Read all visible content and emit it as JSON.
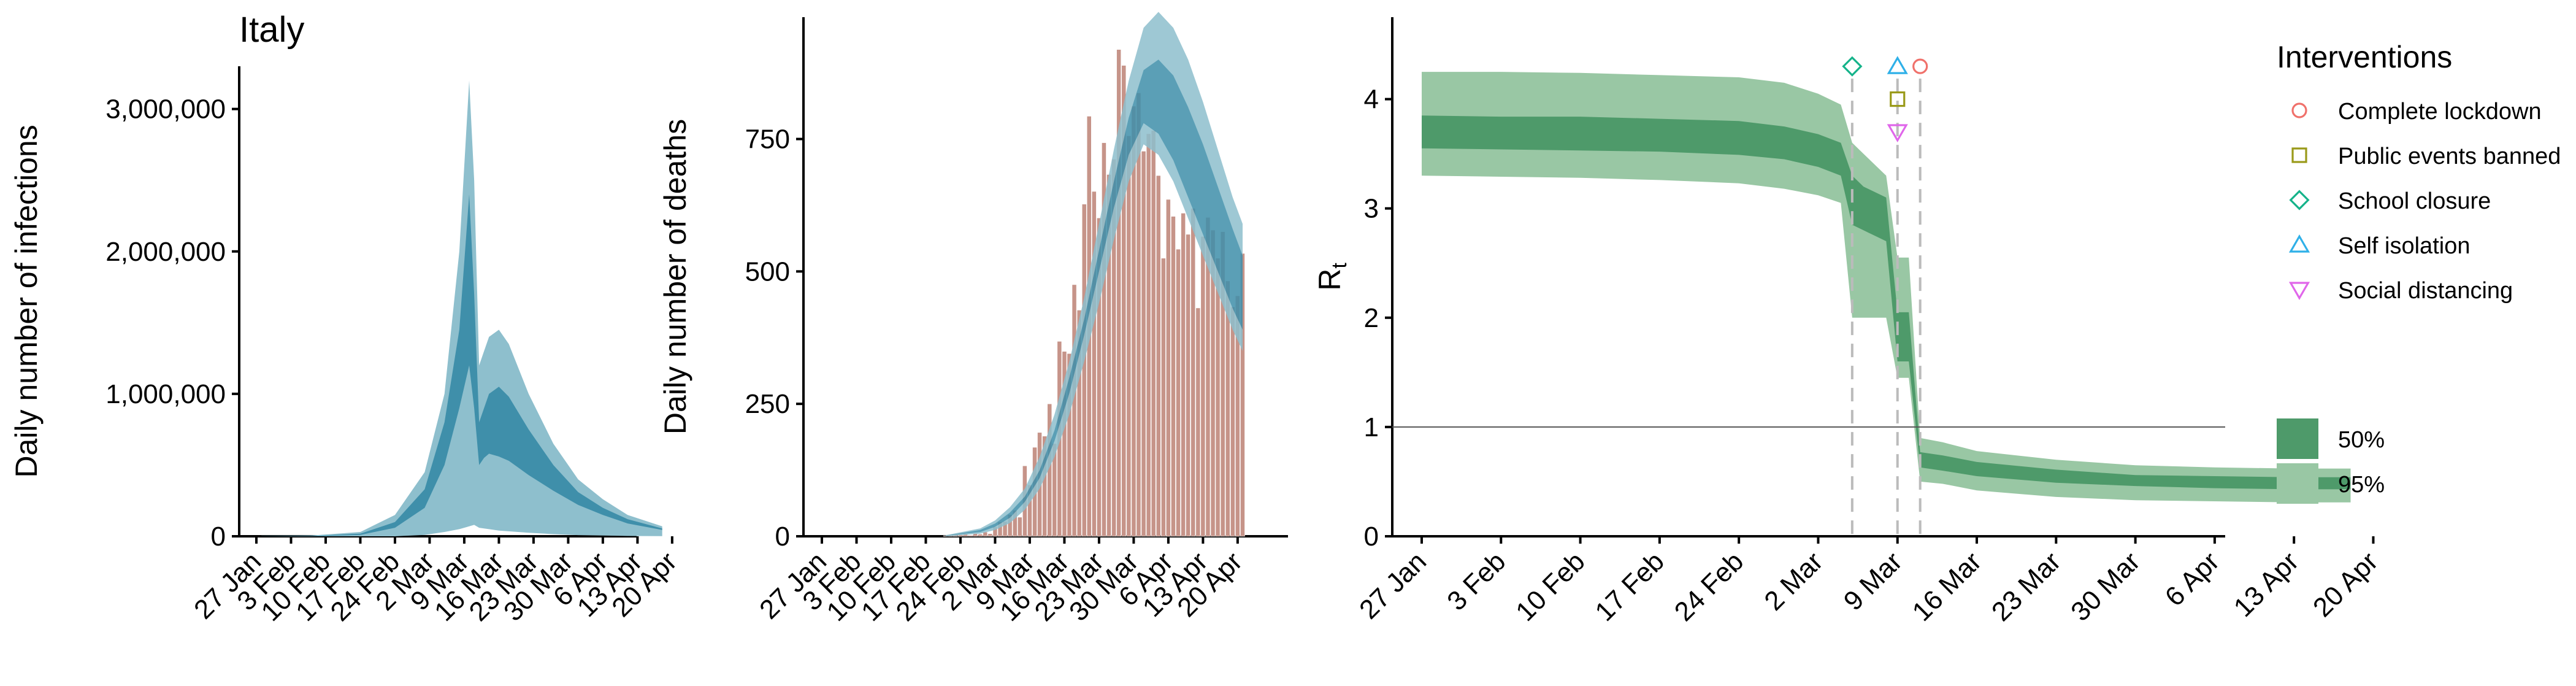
{
  "colors": {
    "blue_outer": "#8ebfcd",
    "blue_inner": "#3f8faa",
    "bar": "#c69489",
    "green_outer": "#99c7a4",
    "green_inner": "#4e9a6a",
    "lockdown": "#f0716b",
    "public_events": "#9a9a1a",
    "school": "#15b38a",
    "self_isolation": "#2fb0e8",
    "social_distancing": "#e066ea"
  },
  "chart_data": [
    {
      "type": "area",
      "title": "Italy",
      "xlabel": "",
      "ylabel": "Daily number of infections",
      "x_ticks": [
        "27 Jan",
        "3 Feb",
        "10 Feb",
        "17 Feb",
        "24 Feb",
        "2 Mar",
        "9 Mar",
        "16 Mar",
        "23 Mar",
        "30 Mar",
        "6 Apr",
        "13 Apr",
        "20 Apr"
      ],
      "y_ticks": [
        "0",
        "1,000,000",
        "2,000,000",
        "3,000,000"
      ],
      "ylim": [
        0,
        3300000
      ],
      "series": [
        {
          "band": "95%",
          "x": [
            "28 Jan",
            "7 Feb",
            "17 Feb",
            "24 Feb",
            "1 Mar",
            "5 Mar",
            "8 Mar",
            "10 Mar",
            "11 Mar",
            "12 Mar",
            "13 Mar",
            "14 Mar",
            "16 Mar",
            "18 Mar",
            "22 Mar",
            "27 Mar",
            "1 Apr",
            "6 Apr",
            "11 Apr",
            "18 Apr"
          ],
          "low": [
            0,
            0,
            0,
            0,
            10000,
            30000,
            50000,
            70000,
            80000,
            60000,
            55000,
            50000,
            40000,
            35000,
            25000,
            15000,
            8000,
            5000,
            2000,
            1000
          ],
          "high": [
            1000,
            5000,
            30000,
            150000,
            450000,
            1000000,
            2000000,
            3200000,
            2500000,
            1200000,
            1300000,
            1400000,
            1450000,
            1350000,
            1000000,
            650000,
            400000,
            260000,
            150000,
            70000
          ]
        },
        {
          "band": "50%",
          "x": [
            "28 Jan",
            "7 Feb",
            "17 Feb",
            "24 Feb",
            "1 Mar",
            "5 Mar",
            "8 Mar",
            "10 Mar",
            "11 Mar",
            "12 Mar",
            "13 Mar",
            "14 Mar",
            "16 Mar",
            "18 Mar",
            "22 Mar",
            "27 Mar",
            "1 Apr",
            "6 Apr",
            "11 Apr",
            "18 Apr"
          ],
          "low": [
            0,
            0,
            10000,
            60000,
            200000,
            500000,
            900000,
            1200000,
            900000,
            500000,
            550000,
            580000,
            560000,
            530000,
            430000,
            320000,
            220000,
            150000,
            90000,
            45000
          ],
          "high": [
            500,
            2000,
            18000,
            100000,
            330000,
            800000,
            1450000,
            2400000,
            1700000,
            800000,
            900000,
            1000000,
            1050000,
            980000,
            750000,
            500000,
            310000,
            200000,
            120000,
            55000
          ]
        }
      ]
    },
    {
      "type": "bar",
      "title": "",
      "xlabel": "",
      "ylabel": "Daily number of deaths",
      "x_ticks": [
        "27 Jan",
        "3 Feb",
        "10 Feb",
        "17 Feb",
        "24 Feb",
        "2 Mar",
        "9 Mar",
        "16 Mar",
        "23 Mar",
        "30 Mar",
        "6 Apr",
        "13 Apr",
        "20 Apr"
      ],
      "y_ticks": [
        "0",
        "250",
        "500",
        "750"
      ],
      "ylim": [
        0,
        980
      ],
      "categories": [
        "21 Feb",
        "22 Feb",
        "23 Feb",
        "24 Feb",
        "25 Feb",
        "26 Feb",
        "27 Feb",
        "28 Feb",
        "29 Feb",
        "1 Mar",
        "2 Mar",
        "3 Mar",
        "4 Mar",
        "5 Mar",
        "6 Mar",
        "7 Mar",
        "8 Mar",
        "9 Mar",
        "10 Mar",
        "11 Mar",
        "12 Mar",
        "13 Mar",
        "14 Mar",
        "15 Mar",
        "16 Mar",
        "17 Mar",
        "18 Mar",
        "19 Mar",
        "20 Mar",
        "21 Mar",
        "22 Mar",
        "23 Mar",
        "24 Mar",
        "25 Mar",
        "26 Mar",
        "27 Mar",
        "28 Mar",
        "29 Mar",
        "30 Mar",
        "31 Mar",
        "1 Apr",
        "2 Apr",
        "3 Apr",
        "4 Apr",
        "5 Apr",
        "6 Apr",
        "7 Apr",
        "8 Apr",
        "9 Apr",
        "10 Apr",
        "11 Apr",
        "12 Apr",
        "13 Apr",
        "14 Apr",
        "15 Apr",
        "16 Apr",
        "17 Apr",
        "18 Apr",
        "19 Apr",
        "20 Apr",
        "21 Apr"
      ],
      "values": [
        1,
        1,
        1,
        3,
        4,
        2,
        5,
        4,
        8,
        5,
        18,
        27,
        28,
        41,
        49,
        36,
        133,
        97,
        168,
        196,
        189,
        250,
        175,
        368,
        349,
        345,
        475,
        427,
        627,
        793,
        651,
        601,
        743,
        683,
        712,
        919,
        889,
        756,
        812,
        837,
        727,
        760,
        766,
        681,
        525,
        636,
        604,
        542,
        610,
        570,
        619,
        431,
        566,
        602,
        578,
        525,
        575,
        482,
        433,
        454,
        534
      ],
      "series": [
        {
          "band": "95%",
          "x": [
            "21 Feb",
            "28 Feb",
            "2 Mar",
            "5 Mar",
            "8 Mar",
            "11 Mar",
            "14 Mar",
            "17 Mar",
            "20 Mar",
            "23 Mar",
            "26 Mar",
            "29 Mar",
            "1 Apr",
            "4 Apr",
            "7 Apr",
            "10 Apr",
            "13 Apr",
            "16 Apr",
            "19 Apr",
            "21 Apr"
          ],
          "low": [
            0,
            5,
            12,
            25,
            50,
            90,
            150,
            230,
            330,
            440,
            560,
            670,
            740,
            720,
            670,
            600,
            530,
            460,
            390,
            350
          ],
          "high": [
            2,
            15,
            30,
            55,
            90,
            150,
            230,
            330,
            450,
            590,
            730,
            860,
            960,
            990,
            960,
            900,
            820,
            730,
            640,
            590
          ]
        },
        {
          "band": "50%",
          "x": [
            "21 Feb",
            "28 Feb",
            "2 Mar",
            "5 Mar",
            "8 Mar",
            "11 Mar",
            "14 Mar",
            "17 Mar",
            "20 Mar",
            "23 Mar",
            "26 Mar",
            "29 Mar",
            "1 Apr",
            "4 Apr",
            "7 Apr",
            "10 Apr",
            "13 Apr",
            "16 Apr",
            "19 Apr",
            "21 Apr"
          ],
          "low": [
            1,
            8,
            18,
            35,
            65,
            110,
            180,
            270,
            380,
            500,
            620,
            720,
            780,
            760,
            710,
            640,
            570,
            500,
            430,
            390
          ],
          "high": [
            1,
            12,
            24,
            45,
            75,
            125,
            200,
            300,
            410,
            540,
            670,
            790,
            880,
            900,
            870,
            810,
            740,
            660,
            580,
            530
          ]
        }
      ]
    },
    {
      "type": "area",
      "title": "",
      "xlabel": "",
      "ylabel": "R",
      "ylabel_subscript": "t",
      "x_ticks": [
        "27 Jan",
        "3 Feb",
        "10 Feb",
        "17 Feb",
        "24 Feb",
        "2 Mar",
        "9 Mar",
        "16 Mar",
        "23 Mar",
        "30 Mar",
        "6 Apr",
        "13 Apr",
        "20 Apr"
      ],
      "y_ticks": [
        "0",
        "1",
        "2",
        "3",
        "4"
      ],
      "ylim": [
        0,
        4.75
      ],
      "reference_line": 1,
      "series": [
        {
          "band": "95%",
          "x": [
            "27 Jan",
            "3 Feb",
            "10 Feb",
            "17 Feb",
            "24 Feb",
            "28 Feb",
            "2 Mar",
            "4 Mar",
            "5 Mar",
            "6 Mar",
            "8 Mar",
            "9 Mar",
            "10 Mar",
            "11 Mar",
            "13 Mar",
            "16 Mar",
            "23 Mar",
            "30 Mar",
            "6 Apr",
            "13 Apr",
            "18 Apr"
          ],
          "low": [
            3.3,
            3.29,
            3.28,
            3.26,
            3.23,
            3.18,
            3.12,
            3.05,
            2.0,
            2.0,
            2.0,
            1.45,
            1.45,
            0.5,
            0.48,
            0.42,
            0.36,
            0.33,
            0.32,
            0.31,
            0.31
          ],
          "high": [
            4.25,
            4.25,
            4.24,
            4.22,
            4.2,
            4.15,
            4.05,
            3.95,
            3.6,
            3.5,
            3.3,
            2.55,
            2.55,
            0.9,
            0.86,
            0.78,
            0.7,
            0.65,
            0.63,
            0.62,
            0.62
          ]
        },
        {
          "band": "50%",
          "x": [
            "27 Jan",
            "3 Feb",
            "10 Feb",
            "17 Feb",
            "24 Feb",
            "28 Feb",
            "2 Mar",
            "4 Mar",
            "5 Mar",
            "6 Mar",
            "8 Mar",
            "9 Mar",
            "10 Mar",
            "11 Mar",
            "13 Mar",
            "16 Mar",
            "23 Mar",
            "30 Mar",
            "6 Apr",
            "13 Apr",
            "18 Apr"
          ],
          "low": [
            3.55,
            3.54,
            3.53,
            3.52,
            3.49,
            3.45,
            3.38,
            3.3,
            2.85,
            2.8,
            2.7,
            1.6,
            1.6,
            0.63,
            0.6,
            0.55,
            0.49,
            0.46,
            0.44,
            0.43,
            0.43
          ],
          "high": [
            3.85,
            3.84,
            3.84,
            3.82,
            3.8,
            3.75,
            3.68,
            3.6,
            3.3,
            3.2,
            3.1,
            2.05,
            2.05,
            0.77,
            0.74,
            0.68,
            0.61,
            0.56,
            0.55,
            0.54,
            0.54
          ]
        }
      ],
      "interventions": [
        {
          "name": "School closure",
          "date": "5 Mar",
          "shape": "diamond",
          "level": 4.3
        },
        {
          "name": "Self isolation",
          "date": "9 Mar",
          "shape": "triangle-up",
          "level": 4.3
        },
        {
          "name": "Public events banned",
          "date": "9 Mar",
          "shape": "square",
          "level": 4.0
        },
        {
          "name": "Social distancing",
          "date": "9 Mar",
          "shape": "triangle-down",
          "level": 3.7
        },
        {
          "name": "Complete lockdown",
          "date": "11 Mar",
          "shape": "circle",
          "level": 4.3
        }
      ]
    }
  ],
  "legend": {
    "interventions_title": "Interventions",
    "interventions": [
      {
        "label": "Complete lockdown",
        "shape": "circle"
      },
      {
        "label": "Public events banned",
        "shape": "square"
      },
      {
        "label": "School closure",
        "shape": "diamond"
      },
      {
        "label": "Self isolation",
        "shape": "triangle-up"
      },
      {
        "label": "Social distancing",
        "shape": "triangle-down"
      }
    ],
    "bands": [
      {
        "label": "50%"
      },
      {
        "label": "95%"
      }
    ]
  }
}
